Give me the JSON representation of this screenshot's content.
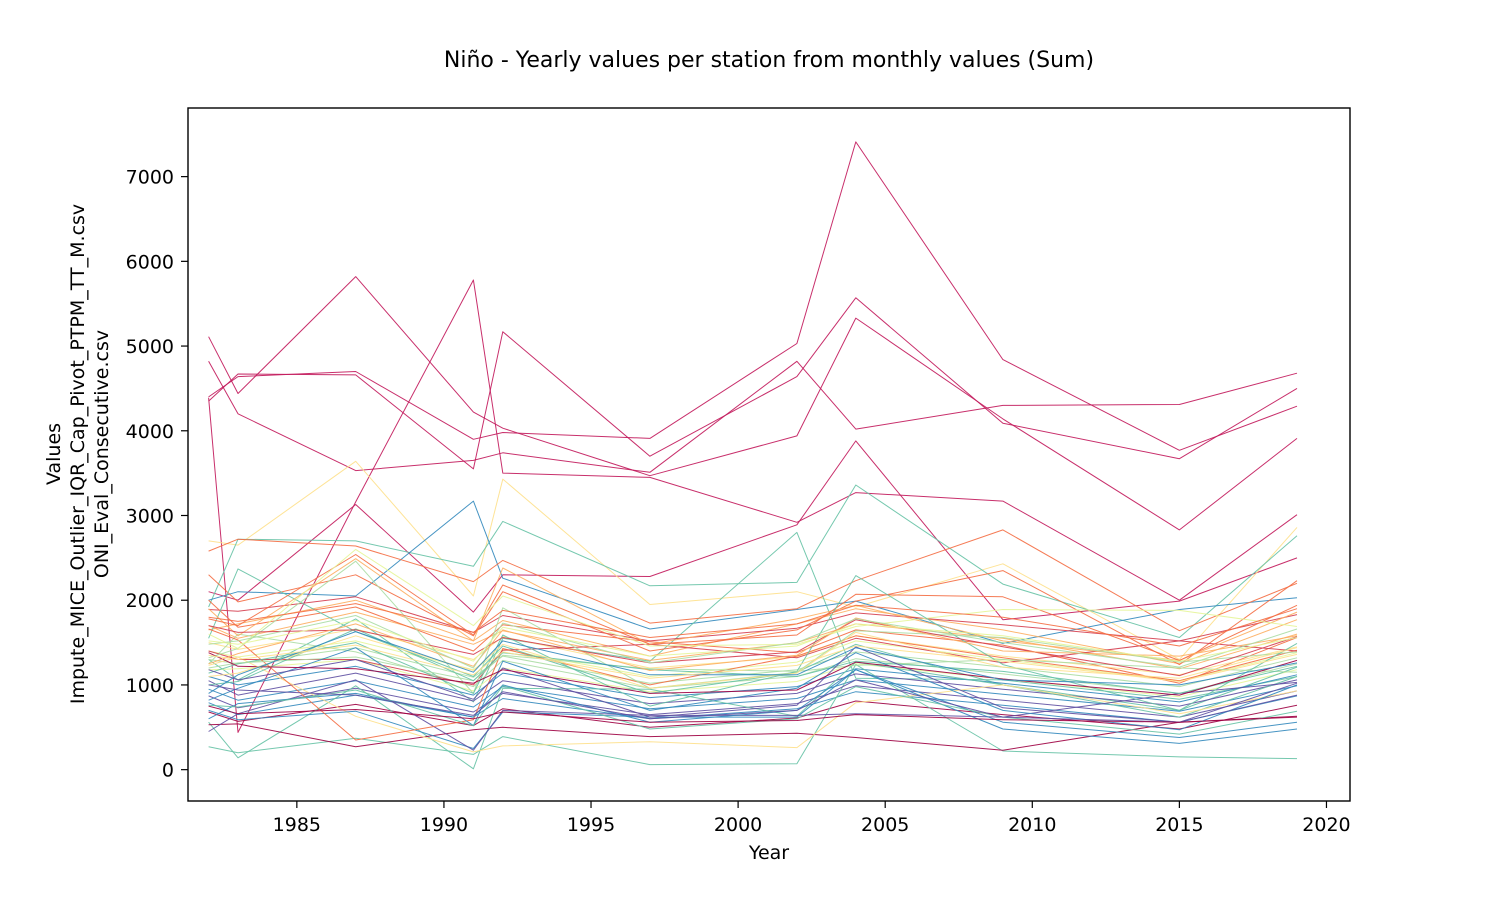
{
  "chart_data": {
    "type": "line",
    "title": "Niño - Yearly values per station from monthly values (Sum)",
    "xlabel": "Year",
    "ylabel_line1": "Values",
    "ylabel_line2": "Impute_MICE_Outlier_IQR_Cap_Pivot_PTPM_TT_M.csv",
    "ylabel_line3": "ONI_Eval_Consecutive.csv",
    "xlim": [
      1981.3,
      2020.8
    ],
    "ylim": [
      -370,
      7810
    ],
    "x": [
      1982,
      1983,
      1987,
      1991,
      1992,
      1997,
      2002,
      2004,
      2009,
      2015,
      2019
    ],
    "x_ticks": [
      1985,
      1990,
      1995,
      2000,
      2005,
      2010,
      2015,
      2020
    ],
    "y_ticks": [
      0,
      1000,
      2000,
      3000,
      4000,
      5000,
      6000,
      7000
    ],
    "legend": "none",
    "grid": false,
    "colormap": "Spectral",
    "series_note_colors": [
      "#9e0142",
      "#d53e4f",
      "#f46d43",
      "#fdae61",
      "#fee08b",
      "#e6f598",
      "#abdda4",
      "#66c2a5",
      "#3288bd",
      "#5e4fa2"
    ],
    "series": [
      {
        "color": "#c2185b",
        "values": [
          4350,
          4670,
          4660,
          3550,
          5170,
          3700,
          4640,
          5570,
          4090,
          3670,
          4500
        ]
      },
      {
        "color": "#c2185b",
        "values": [
          4820,
          4200,
          3530,
          3650,
          3740,
          3510,
          4820,
          4020,
          4300,
          4310,
          4680
        ]
      },
      {
        "color": "#c2185b",
        "values": [
          4400,
          4640,
          4700,
          3900,
          3980,
          3910,
          5030,
          7410,
          4840,
          3770,
          4290
        ]
      },
      {
        "color": "#c2185b",
        "values": [
          5110,
          4440,
          5820,
          4220,
          4030,
          3470,
          3940,
          5330,
          4140,
          2830,
          3910
        ]
      },
      {
        "color": "#c2185b",
        "values": [
          4390,
          440,
          3160,
          5780,
          3500,
          3450,
          2920,
          3270,
          3170,
          2000,
          3010
        ]
      },
      {
        "color": "#c2185b",
        "values": [
          2100,
          2000,
          3130,
          1860,
          2300,
          2280,
          2890,
          3880,
          1770,
          1990,
          2500
        ]
      },
      {
        "color": "#fee08b",
        "values": [
          2700,
          2650,
          3640,
          2050,
          3430,
          1950,
          2100,
          1920,
          2430,
          1300,
          2860
        ]
      },
      {
        "color": "#66c2a5",
        "values": [
          1920,
          2720,
          2700,
          2400,
          2930,
          2170,
          2210,
          3360,
          2190,
          1560,
          2760
        ]
      },
      {
        "color": "#3288bd",
        "values": [
          2000,
          2100,
          2050,
          3170,
          2260,
          1660,
          1890,
          1990,
          1490,
          1890,
          2030
        ]
      },
      {
        "color": "#66c2a5",
        "values": [
          1300,
          1060,
          1780,
          800,
          1550,
          1280,
          2800,
          1080,
          1060,
          830,
          1100
        ]
      },
      {
        "color": "#f46d43",
        "values": [
          2580,
          2720,
          2640,
          2220,
          2470,
          1730,
          1900,
          2230,
          2830,
          1640,
          2200
        ]
      },
      {
        "color": "#fdae61",
        "values": [
          1650,
          1720,
          2000,
          1520,
          1760,
          1340,
          1720,
          1900,
          1650,
          1250,
          1770
        ]
      },
      {
        "color": "#d53e4f",
        "values": [
          1890,
          1870,
          2040,
          1620,
          1820,
          1520,
          1670,
          1850,
          1710,
          1520,
          1830
        ]
      },
      {
        "color": "#f46d43",
        "values": [
          2300,
          1980,
          2300,
          1580,
          2100,
          1400,
          1650,
          1990,
          2350,
          1240,
          2230
        ]
      },
      {
        "color": "#fdae61",
        "values": [
          1700,
          1550,
          1860,
          1480,
          1640,
          1290,
          1500,
          1720,
          1550,
          1190,
          1600
        ]
      },
      {
        "color": "#f46d43",
        "values": [
          2000,
          1680,
          1920,
          1400,
          1710,
          1510,
          1380,
          1650,
          1470,
          1020,
          1560
        ]
      },
      {
        "color": "#fee08b",
        "values": [
          1500,
          1420,
          1660,
          1300,
          1570,
          1200,
          1330,
          1580,
          1340,
          1120,
          1450
        ]
      },
      {
        "color": "#e6f598",
        "values": [
          1400,
          1330,
          1520,
          1180,
          1420,
          1100,
          1270,
          1520,
          1300,
          1050,
          1380
        ]
      },
      {
        "color": "#abdda4",
        "values": [
          1300,
          1250,
          1440,
          1090,
          1340,
          1020,
          1180,
          1390,
          1210,
          980,
          1320
        ]
      },
      {
        "color": "#abdda4",
        "values": [
          1250,
          1600,
          1390,
          980,
          1290,
          960,
          1100,
          1310,
          1130,
          900,
          1250
        ]
      },
      {
        "color": "#e6f598",
        "values": [
          1180,
          1190,
          1300,
          930,
          1200,
          920,
          1040,
          1250,
          1070,
          860,
          1180
        ]
      },
      {
        "color": "#66c2a5",
        "values": [
          1550,
          2370,
          1630,
          1100,
          1460,
          900,
          1150,
          1480,
          1000,
          700,
          1210
        ]
      },
      {
        "color": "#3288bd",
        "values": [
          1100,
          1000,
          1220,
          880,
          1140,
          850,
          980,
          1190,
          1020,
          800,
          1120
        ]
      },
      {
        "color": "#5e4fa2",
        "values": [
          1050,
          880,
          1140,
          810,
          1050,
          780,
          900,
          1130,
          950,
          750,
          1060
        ]
      },
      {
        "color": "#3288bd",
        "values": [
          950,
          820,
          1050,
          740,
          980,
          720,
          840,
          1060,
          890,
          690,
          990
        ]
      },
      {
        "color": "#5e4fa2",
        "values": [
          870,
          730,
          960,
          680,
          900,
          650,
          780,
          990,
          820,
          620,
          930
        ]
      },
      {
        "color": "#3288bd",
        "values": [
          790,
          650,
          880,
          620,
          840,
          600,
          720,
          920,
          760,
          560,
          870
        ]
      },
      {
        "color": "#9e0142",
        "values": [
          680,
          570,
          770,
          520,
          720,
          500,
          610,
          810,
          650,
          480,
          760
        ]
      },
      {
        "color": "#66c2a5",
        "values": [
          270,
          200,
          370,
          180,
          390,
          60,
          70,
          1240,
          220,
          150,
          130
        ]
      },
      {
        "color": "#66c2a5",
        "values": [
          560,
          140,
          990,
          10,
          960,
          950,
          630,
          1270,
          1000,
          620,
          1100
        ]
      },
      {
        "color": "#9e0142",
        "values": [
          530,
          540,
          270,
          470,
          500,
          390,
          430,
          380,
          230,
          560,
          630
        ]
      },
      {
        "color": "#fee08b",
        "values": [
          1230,
          1330,
          630,
          210,
          280,
          330,
          260,
          790,
          1000,
          660,
          930
        ]
      },
      {
        "color": "#3288bd",
        "values": [
          700,
          590,
          690,
          250,
          680,
          620,
          620,
          1180,
          480,
          310,
          480
        ]
      },
      {
        "color": "#5e4fa2",
        "values": [
          450,
          660,
          1060,
          230,
          700,
          640,
          640,
          660,
          620,
          900,
          1030
        ]
      },
      {
        "color": "#f46d43",
        "values": [
          1660,
          1530,
          350,
          590,
          1430,
          1000,
          1340,
          1580,
          1320,
          1050,
          1410
        ]
      },
      {
        "color": "#d53e4f",
        "values": [
          1400,
          1300,
          1300,
          1000,
          1410,
          1480,
          1320,
          1550,
          1260,
          1520,
          1400
        ]
      },
      {
        "color": "#fdae61",
        "values": [
          1900,
          1580,
          2490,
          1520,
          2380,
          1480,
          1780,
          1940,
          1520,
          1290,
          1860
        ]
      },
      {
        "color": "#f46d43",
        "values": [
          1780,
          1700,
          2540,
          1590,
          2180,
          1480,
          1590,
          2070,
          2040,
          1290,
          1940
        ]
      },
      {
        "color": "#abdda4",
        "values": [
          1320,
          1430,
          2460,
          900,
          1910,
          960,
          1150,
          1640,
          1560,
          1270,
          1390
        ]
      },
      {
        "color": "#e6f598",
        "values": [
          1600,
          1430,
          2600,
          1700,
          2050,
          1460,
          1480,
          1690,
          1890,
          1880,
          1690
        ]
      },
      {
        "color": "#66c2a5",
        "values": [
          1140,
          1250,
          1500,
          900,
          1590,
          750,
          1160,
          2290,
          1240,
          700,
          1490
        ]
      },
      {
        "color": "#abdda4",
        "values": [
          1200,
          1260,
          1330,
          1050,
          1350,
          1190,
          1160,
          1230,
          1300,
          1200,
          1150
        ]
      },
      {
        "color": "#66c2a5",
        "values": [
          1000,
          1040,
          1660,
          1050,
          1380,
          1180,
          1100,
          1280,
          1160,
          900,
          1220
        ]
      },
      {
        "color": "#3288bd",
        "values": [
          820,
          960,
          1440,
          520,
          1280,
          700,
          960,
          1380,
          700,
          470,
          1000
        ]
      },
      {
        "color": "#5e4fa2",
        "values": [
          1180,
          1060,
          1300,
          830,
          1200,
          620,
          760,
          1450,
          730,
          560,
          1020
        ]
      },
      {
        "color": "#9e0142",
        "values": [
          1380,
          1220,
          1190,
          1020,
          1180,
          900,
          940,
          1270,
          1070,
          880,
          1290
        ]
      },
      {
        "color": "#d53e4f",
        "values": [
          1700,
          1620,
          1650,
          1360,
          1560,
          1260,
          1390,
          1770,
          1450,
          1110,
          1570
        ]
      },
      {
        "color": "#fdae61",
        "values": [
          1250,
          1370,
          1720,
          1220,
          1650,
          1170,
          1350,
          1790,
          1400,
          1340,
          1580
        ]
      },
      {
        "color": "#fee08b",
        "values": [
          1100,
          1140,
          1580,
          1170,
          1480,
          960,
          1140,
          1620,
          1210,
          1080,
          1440
        ]
      },
      {
        "color": "#3288bd",
        "values": [
          600,
          780,
          900,
          620,
          1000,
          560,
          700,
          1180,
          560,
          380,
          560
        ]
      },
      {
        "color": "#66c2a5",
        "values": [
          760,
          740,
          940,
          520,
          990,
          480,
          600,
          980,
          620,
          420,
          690
        ]
      },
      {
        "color": "#5e4fa2",
        "values": [
          1000,
          940,
          880,
          640,
          920,
          600,
          700,
          1060,
          620,
          560,
          880
        ]
      },
      {
        "color": "#9e0142",
        "values": [
          750,
          660,
          710,
          600,
          680,
          560,
          580,
          650,
          590,
          560,
          620
        ]
      },
      {
        "color": "#3288bd",
        "values": [
          900,
          1120,
          1630,
          1150,
          1520,
          1120,
          1120,
          1440,
          1060,
          1000,
          1260
        ]
      },
      {
        "color": "#abdda4",
        "values": [
          1480,
          1520,
          1820,
          1200,
          1730,
          1260,
          1500,
          1780,
          1500,
          1210,
          1660
        ]
      },
      {
        "color": "#e6f598",
        "values": [
          1520,
          1480,
          1760,
          1280,
          1680,
          1340,
          1460,
          1720,
          1580,
          1280,
          1560
        ]
      },
      {
        "color": "#fee08b",
        "values": [
          1350,
          1300,
          1470,
          1120,
          1390,
          1080,
          1230,
          1460,
          1280,
          1040,
          1360
        ]
      },
      {
        "color": "#f46d43",
        "values": [
          1800,
          1750,
          1960,
          1620,
          1880,
          1560,
          1720,
          1940,
          1800,
          1460,
          1900
        ]
      }
    ]
  }
}
